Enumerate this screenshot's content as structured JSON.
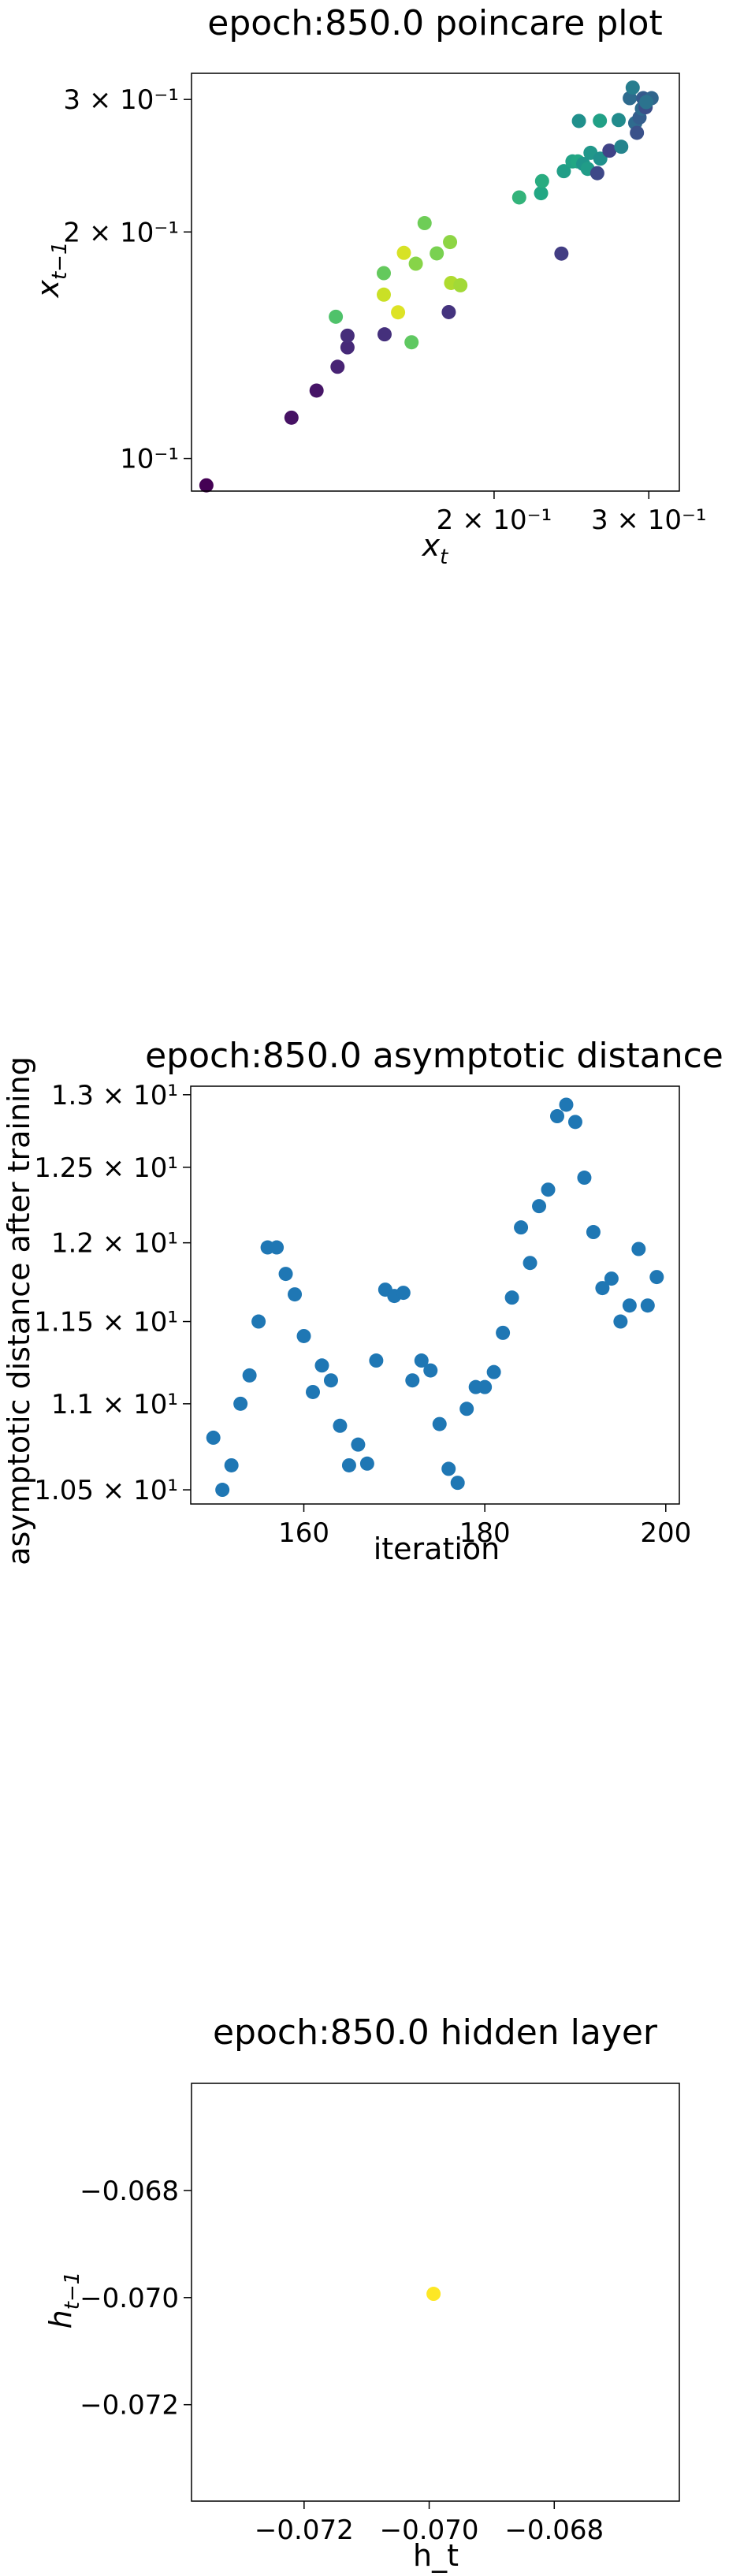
{
  "chart_data": [
    {
      "type": "scatter",
      "title": "epoch:850.0 poincare plot",
      "xlabel": "x_t",
      "ylabel": "x_{t-1}",
      "xscale": "log",
      "yscale": "log",
      "xlim": [
        0.0905,
        0.325
      ],
      "ylim": [
        0.0905,
        0.325
      ],
      "xticks": [
        {
          "value": 0.2,
          "label": "2 × 10⁻¹"
        },
        {
          "value": 0.3,
          "label": "3 × 10⁻¹"
        }
      ],
      "yticks": [
        {
          "value": 0.1,
          "label": "10⁻¹"
        },
        {
          "value": 0.2,
          "label": "2 × 10⁻¹"
        },
        {
          "value": 0.3,
          "label": "3 × 10⁻¹"
        }
      ],
      "colormap": "viridis",
      "points": [
        {
          "x": 0.0941,
          "y": 0.0921,
          "c": 0.0
        },
        {
          "x": 0.1176,
          "y": 0.1133,
          "c": 0.05
        },
        {
          "x": 0.1256,
          "y": 0.1231,
          "c": 0.06
        },
        {
          "x": 0.1327,
          "y": 0.1324,
          "c": 0.1
        },
        {
          "x": 0.1362,
          "y": 0.1405,
          "c": 0.12
        },
        {
          "x": 0.1362,
          "y": 0.1456,
          "c": 0.13
        },
        {
          "x": 0.1501,
          "y": 0.1462,
          "c": 0.14
        },
        {
          "x": 0.1321,
          "y": 0.1543,
          "c": 0.72
        },
        {
          "x": 0.1498,
          "y": 0.1651,
          "c": 0.92
        },
        {
          "x": 0.1498,
          "y": 0.1763,
          "c": 0.76
        },
        {
          "x": 0.1555,
          "y": 0.1564,
          "c": 0.95
        },
        {
          "x": 0.1579,
          "y": 0.1876,
          "c": 0.94
        },
        {
          "x": 0.1611,
          "y": 0.1427,
          "c": 0.75
        },
        {
          "x": 0.1629,
          "y": 0.1815,
          "c": 0.82
        },
        {
          "x": 0.1667,
          "y": 0.2055,
          "c": 0.78
        },
        {
          "x": 0.1721,
          "y": 0.1873,
          "c": 0.8
        },
        {
          "x": 0.1776,
          "y": 0.1565,
          "c": 0.15
        },
        {
          "x": 0.1782,
          "y": 0.1939,
          "c": 0.83
        },
        {
          "x": 0.1787,
          "y": 0.1711,
          "c": 0.88
        },
        {
          "x": 0.1831,
          "y": 0.1699,
          "c": 0.86
        },
        {
          "x": 0.2136,
          "y": 0.2223,
          "c": 0.65
        },
        {
          "x": 0.2262,
          "y": 0.2252,
          "c": 0.6
        },
        {
          "x": 0.2268,
          "y": 0.2337,
          "c": 0.62
        },
        {
          "x": 0.2386,
          "y": 0.1872,
          "c": 0.18
        },
        {
          "x": 0.2401,
          "y": 0.2409,
          "c": 0.56
        },
        {
          "x": 0.2456,
          "y": 0.2482,
          "c": 0.58
        },
        {
          "x": 0.2491,
          "y": 0.2482,
          "c": 0.6
        },
        {
          "x": 0.2498,
          "y": 0.2809,
          "c": 0.5
        },
        {
          "x": 0.2526,
          "y": 0.2463,
          "c": 0.52
        },
        {
          "x": 0.2556,
          "y": 0.2426,
          "c": 0.55
        },
        {
          "x": 0.2575,
          "y": 0.2548,
          "c": 0.53
        },
        {
          "x": 0.2621,
          "y": 0.2394,
          "c": 0.22
        },
        {
          "x": 0.2639,
          "y": 0.2811,
          "c": 0.57
        },
        {
          "x": 0.2642,
          "y": 0.2503,
          "c": 0.5
        },
        {
          "x": 0.2706,
          "y": 0.2565,
          "c": 0.2
        },
        {
          "x": 0.2772,
          "y": 0.2817,
          "c": 0.48
        },
        {
          "x": 0.2791,
          "y": 0.2596,
          "c": 0.45
        },
        {
          "x": 0.2854,
          "y": 0.3012,
          "c": 0.35
        },
        {
          "x": 0.2876,
          "y": 0.3111,
          "c": 0.42
        },
        {
          "x": 0.2895,
          "y": 0.2791,
          "c": 0.35
        },
        {
          "x": 0.2908,
          "y": 0.2709,
          "c": 0.25
        },
        {
          "x": 0.2928,
          "y": 0.2839,
          "c": 0.3
        },
        {
          "x": 0.2946,
          "y": 0.2917,
          "c": 0.35
        },
        {
          "x": 0.2956,
          "y": 0.3012,
          "c": 0.3
        },
        {
          "x": 0.2966,
          "y": 0.2997,
          "c": 0.28
        },
        {
          "x": 0.2975,
          "y": 0.2929,
          "c": 0.24
        },
        {
          "x": 0.3022,
          "y": 0.3012,
          "c": 0.33
        },
        {
          "x": 0.298,
          "y": 0.2976,
          "c": 0.38
        }
      ],
      "grid": false
    },
    {
      "type": "scatter",
      "title": "epoch:850.0 asymptotic distance",
      "xlabel": "iteration",
      "ylabel": "asymptotic distance after training",
      "yscale": "log",
      "xlim": [
        147.5,
        201.5
      ],
      "ylim": [
        10.42,
        13.06
      ],
      "xticks": [
        {
          "value": 160,
          "label": "160"
        },
        {
          "value": 180,
          "label": "180"
        },
        {
          "value": 200,
          "label": "200"
        }
      ],
      "yticks": [
        {
          "value": 10.5,
          "label": "1.05 × 10¹"
        },
        {
          "value": 11.0,
          "label": "1.1 × 10¹"
        },
        {
          "value": 11.5,
          "label": "1.15 × 10¹"
        },
        {
          "value": 12.0,
          "label": "1.2 × 10¹"
        },
        {
          "value": 12.5,
          "label": "1.25 × 10¹"
        },
        {
          "value": 13.0,
          "label": "1.3 × 10¹"
        }
      ],
      "color": "#1f77b4",
      "points": [
        {
          "x": 150,
          "y": 10.8
        },
        {
          "x": 151,
          "y": 10.5
        },
        {
          "x": 152,
          "y": 10.64
        },
        {
          "x": 153,
          "y": 11.0
        },
        {
          "x": 154,
          "y": 11.17
        },
        {
          "x": 155,
          "y": 11.5
        },
        {
          "x": 156,
          "y": 11.97
        },
        {
          "x": 157,
          "y": 11.97
        },
        {
          "x": 158,
          "y": 11.8
        },
        {
          "x": 159,
          "y": 11.67
        },
        {
          "x": 160,
          "y": 11.41
        },
        {
          "x": 161,
          "y": 11.07
        },
        {
          "x": 162,
          "y": 11.23
        },
        {
          "x": 163,
          "y": 11.14
        },
        {
          "x": 164,
          "y": 10.87
        },
        {
          "x": 165,
          "y": 10.64
        },
        {
          "x": 166,
          "y": 10.76
        },
        {
          "x": 167,
          "y": 10.65
        },
        {
          "x": 168,
          "y": 11.26
        },
        {
          "x": 169,
          "y": 11.7
        },
        {
          "x": 170,
          "y": 11.66
        },
        {
          "x": 171,
          "y": 11.68
        },
        {
          "x": 172,
          "y": 11.14
        },
        {
          "x": 173,
          "y": 11.26
        },
        {
          "x": 174,
          "y": 11.2
        },
        {
          "x": 175,
          "y": 10.88
        },
        {
          "x": 176,
          "y": 10.62
        },
        {
          "x": 177,
          "y": 10.54
        },
        {
          "x": 178,
          "y": 10.97
        },
        {
          "x": 179,
          "y": 11.1
        },
        {
          "x": 180,
          "y": 11.1
        },
        {
          "x": 181,
          "y": 11.19
        },
        {
          "x": 182,
          "y": 11.43
        },
        {
          "x": 183,
          "y": 11.65
        },
        {
          "x": 184,
          "y": 12.1
        },
        {
          "x": 185,
          "y": 11.87
        },
        {
          "x": 186,
          "y": 12.24
        },
        {
          "x": 187,
          "y": 12.35
        },
        {
          "x": 188,
          "y": 12.85
        },
        {
          "x": 189,
          "y": 12.93
        },
        {
          "x": 190,
          "y": 12.81
        },
        {
          "x": 191,
          "y": 12.43
        },
        {
          "x": 192,
          "y": 12.07
        },
        {
          "x": 193,
          "y": 11.71
        },
        {
          "x": 194,
          "y": 11.77
        },
        {
          "x": 195,
          "y": 11.5
        },
        {
          "x": 196,
          "y": 11.6
        },
        {
          "x": 197,
          "y": 11.96
        },
        {
          "x": 198,
          "y": 11.6
        },
        {
          "x": 199,
          "y": 11.78
        }
      ],
      "grid": false
    },
    {
      "type": "scatter",
      "title": "epoch:850.0 hidden layer",
      "xlabel": "h_t",
      "ylabel": "h_{t-1}",
      "xlim": [
        -0.0738,
        -0.066
      ],
      "ylim": [
        -0.0738,
        -0.066
      ],
      "xticks": [
        {
          "value": -0.072,
          "label": "−0.072"
        },
        {
          "value": -0.07,
          "label": "−0.070"
        },
        {
          "value": -0.068,
          "label": "−0.068"
        }
      ],
      "yticks": [
        {
          "value": -0.068,
          "label": "−0.068"
        },
        {
          "value": -0.07,
          "label": "−0.070"
        },
        {
          "value": -0.072,
          "label": "−0.072"
        }
      ],
      "color": "#fde725",
      "points": [
        {
          "x": -0.06993,
          "y": -0.06993
        }
      ],
      "grid": false
    }
  ]
}
